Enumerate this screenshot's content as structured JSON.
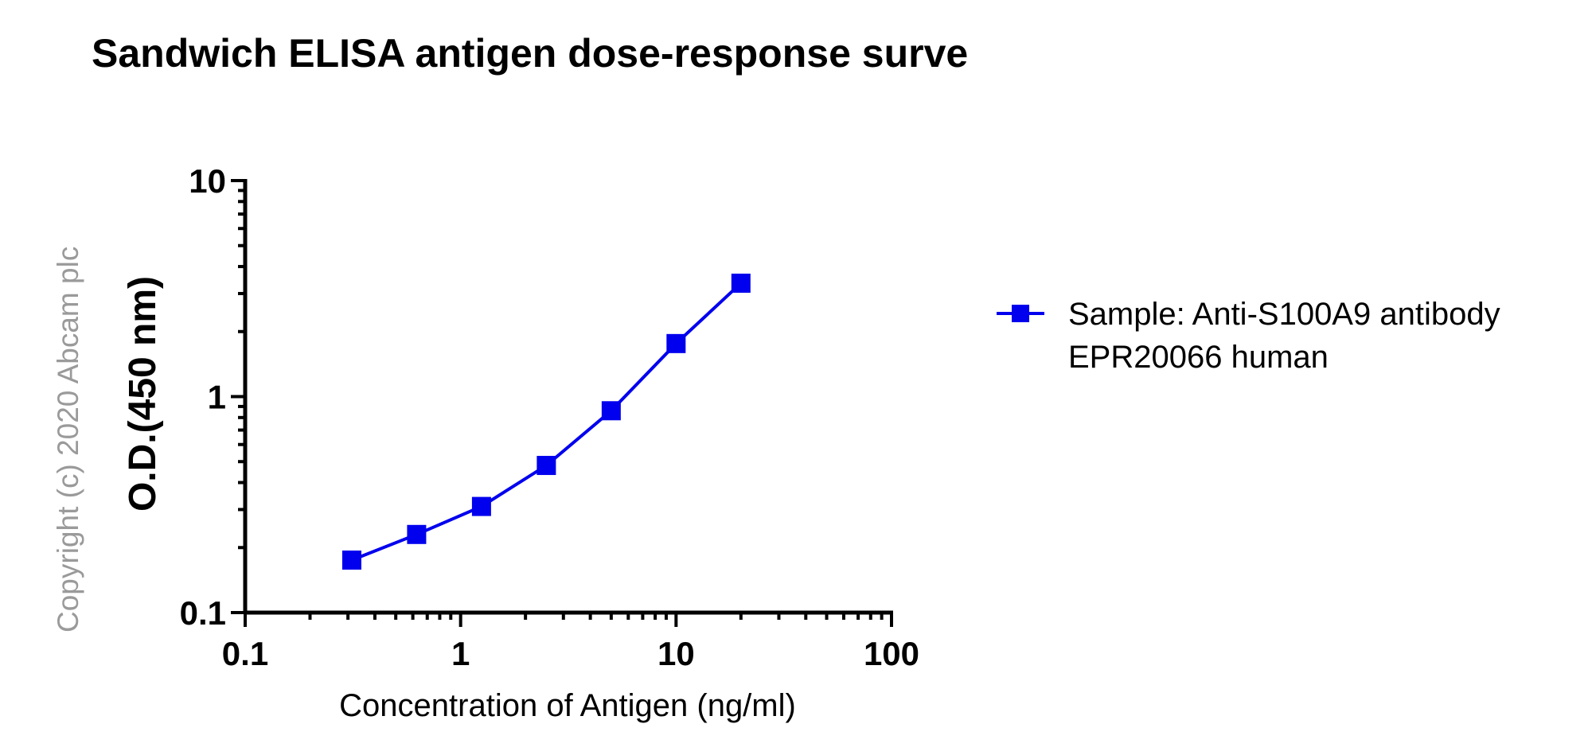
{
  "chart_data": {
    "type": "line",
    "title": "Sandwich ELISA antigen dose-response surve",
    "xlabel": "Concentration of Antigen (ng/ml)",
    "ylabel": "O.D.(450 nm)",
    "x_scale": "log",
    "y_scale": "log",
    "xlim": [
      0.1,
      100
    ],
    "ylim": [
      0.1,
      10
    ],
    "x_ticks": [
      "0.1",
      "1",
      "10",
      "100"
    ],
    "y_ticks": [
      "0.1",
      "1",
      "10"
    ],
    "grid": false,
    "legend_position": "right",
    "series": [
      {
        "name": "Sample: Anti-S100A9 antibody EPR20066 human",
        "color": "#0000ee",
        "marker": "square",
        "x": [
          0.3125,
          0.625,
          1.25,
          2.5,
          5,
          10,
          20
        ],
        "y": [
          0.175,
          0.23,
          0.31,
          0.48,
          0.86,
          1.76,
          3.35
        ]
      }
    ]
  },
  "legend": {
    "line1": "Sample: Anti-S100A9 antibody",
    "line2": "EPR20066 human"
  },
  "copyright": "Copyright (c) 2020 Abcam plc"
}
